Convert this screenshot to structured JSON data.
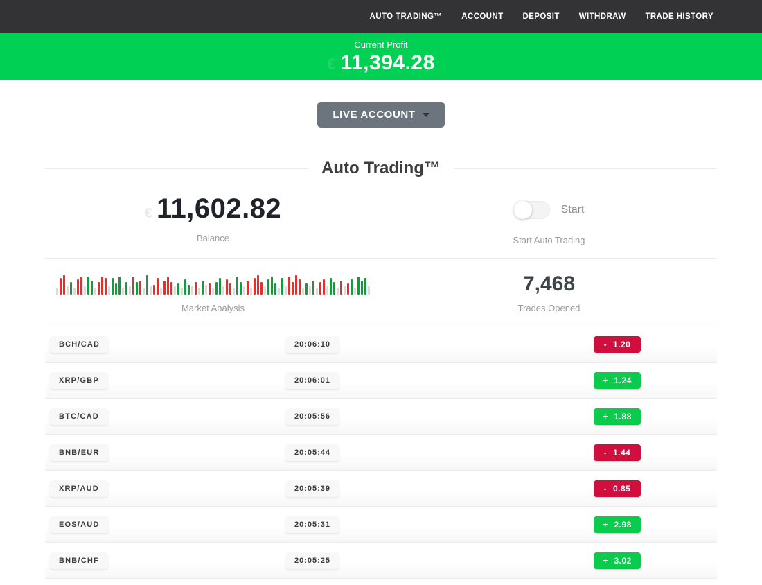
{
  "nav": {
    "items": [
      "AUTO TRADING™",
      "ACCOUNT",
      "DEPOSIT",
      "WITHDRAW",
      "TRADE HISTORY"
    ]
  },
  "profit_banner": {
    "label": "Current Profit",
    "value": "11,394.28",
    "currency_glyph": "€"
  },
  "account_selector": {
    "label": "LIVE ACCOUNT"
  },
  "section": {
    "title": "Auto Trading™"
  },
  "stats": {
    "balance": {
      "value": "11,602.82",
      "label": "Balance",
      "currency_glyph": "€"
    },
    "auto_trading": {
      "toggle_label": "Start",
      "label": "Start Auto Trading",
      "toggle_on": false
    },
    "market_analysis": {
      "label": "Market Analysis",
      "bars": [
        [
          10,
          "n"
        ],
        [
          24,
          "r"
        ],
        [
          28,
          "r"
        ],
        [
          12,
          "n"
        ],
        [
          18,
          "g"
        ],
        [
          10,
          "n"
        ],
        [
          22,
          "r"
        ],
        [
          26,
          "r"
        ],
        [
          12,
          "n"
        ],
        [
          26,
          "g"
        ],
        [
          20,
          "g"
        ],
        [
          10,
          "n"
        ],
        [
          18,
          "r"
        ],
        [
          26,
          "r"
        ],
        [
          24,
          "r"
        ],
        [
          12,
          "n"
        ],
        [
          24,
          "g"
        ],
        [
          16,
          "g"
        ],
        [
          26,
          "g"
        ],
        [
          10,
          "n"
        ],
        [
          18,
          "g"
        ],
        [
          12,
          "n"
        ],
        [
          26,
          "r"
        ],
        [
          18,
          "g"
        ],
        [
          20,
          "r"
        ],
        [
          10,
          "n"
        ],
        [
          28,
          "g"
        ],
        [
          12,
          "n"
        ],
        [
          14,
          "r"
        ],
        [
          24,
          "r"
        ],
        [
          10,
          "n"
        ],
        [
          20,
          "r"
        ],
        [
          26,
          "r"
        ],
        [
          18,
          "r"
        ],
        [
          12,
          "n"
        ],
        [
          16,
          "g"
        ],
        [
          10,
          "n"
        ],
        [
          22,
          "g"
        ],
        [
          14,
          "g"
        ],
        [
          12,
          "n"
        ],
        [
          18,
          "r"
        ],
        [
          10,
          "n"
        ],
        [
          20,
          "g"
        ],
        [
          14,
          "n"
        ],
        [
          16,
          "r"
        ],
        [
          10,
          "n"
        ],
        [
          18,
          "g"
        ],
        [
          24,
          "g"
        ],
        [
          12,
          "n"
        ],
        [
          22,
          "r"
        ],
        [
          16,
          "r"
        ],
        [
          10,
          "n"
        ],
        [
          26,
          "g"
        ],
        [
          18,
          "g"
        ],
        [
          12,
          "n"
        ],
        [
          20,
          "r"
        ],
        [
          10,
          "n"
        ],
        [
          24,
          "r"
        ],
        [
          28,
          "r"
        ],
        [
          18,
          "r"
        ],
        [
          12,
          "n"
        ],
        [
          22,
          "g"
        ],
        [
          26,
          "g"
        ],
        [
          16,
          "g"
        ],
        [
          10,
          "n"
        ],
        [
          24,
          "g"
        ],
        [
          12,
          "n"
        ],
        [
          26,
          "r"
        ],
        [
          18,
          "r"
        ],
        [
          28,
          "r"
        ],
        [
          22,
          "r"
        ],
        [
          10,
          "n"
        ],
        [
          16,
          "g"
        ],
        [
          12,
          "n"
        ],
        [
          20,
          "g"
        ],
        [
          10,
          "n"
        ],
        [
          18,
          "r"
        ],
        [
          22,
          "r"
        ],
        [
          12,
          "n"
        ],
        [
          24,
          "g"
        ],
        [
          18,
          "g"
        ],
        [
          10,
          "n"
        ],
        [
          20,
          "r"
        ],
        [
          12,
          "n"
        ],
        [
          16,
          "r"
        ],
        [
          22,
          "g"
        ],
        [
          10,
          "n"
        ],
        [
          26,
          "g"
        ],
        [
          20,
          "g"
        ],
        [
          24,
          "g"
        ],
        [
          12,
          "n"
        ]
      ]
    },
    "trades_opened": {
      "value": "7,468",
      "label": "Trades Opened"
    }
  },
  "trades": {
    "rows": [
      {
        "pair": "BCH/CAD",
        "time": "20:06:10",
        "result": "- 1.20",
        "direction": "loss"
      },
      {
        "pair": "XRP/GBP",
        "time": "20:06:01",
        "result": "+ 1.24",
        "direction": "gain"
      },
      {
        "pair": "BTC/CAD",
        "time": "20:05:56",
        "result": "+ 1.88",
        "direction": "gain"
      },
      {
        "pair": "BNB/EUR",
        "time": "20:05:44",
        "result": "- 1.44",
        "direction": "loss"
      },
      {
        "pair": "XRP/AUD",
        "time": "20:05:39",
        "result": "- 0.85",
        "direction": "loss"
      },
      {
        "pair": "EOS/AUD",
        "time": "20:05:31",
        "result": "+ 2.98",
        "direction": "gain"
      },
      {
        "pair": "BNB/CHF",
        "time": "20:05:25",
        "result": "+ 3.02",
        "direction": "gain"
      }
    ]
  },
  "colors": {
    "accent_green": "#00d053",
    "badge_green": "#0bcb4d",
    "badge_red": "#d00f3f",
    "nav_bg": "#333336",
    "button_gray": "#6c757d"
  }
}
